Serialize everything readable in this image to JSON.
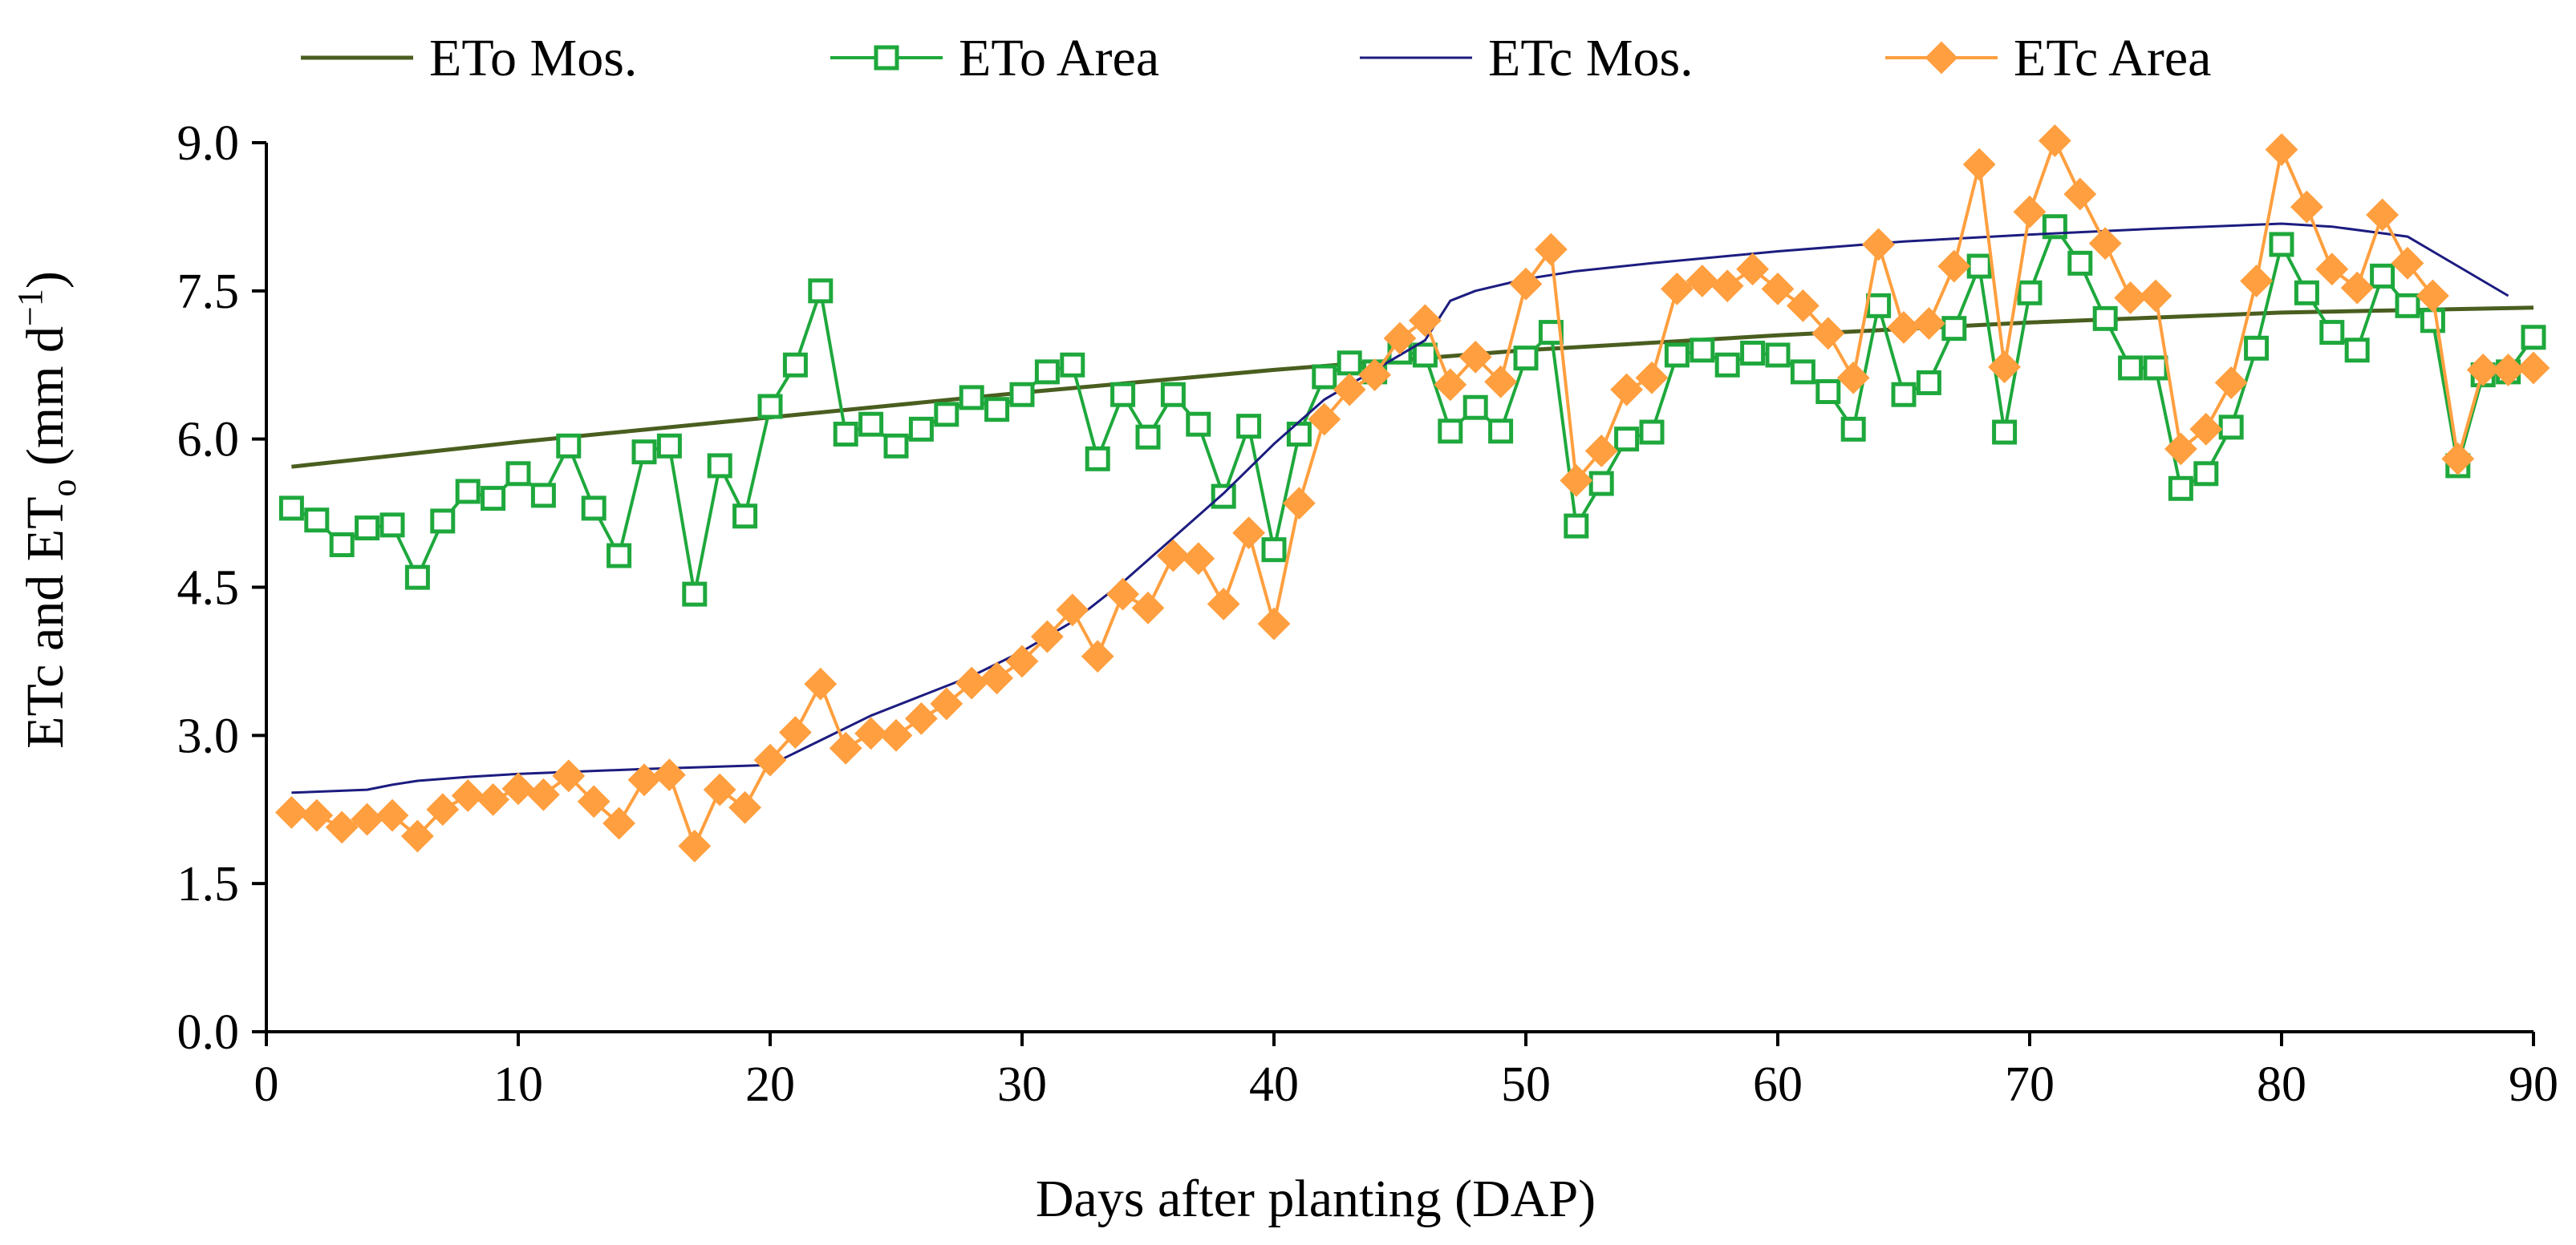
{
  "chart_data": {
    "type": "line",
    "title": "",
    "xlabel": "Days after planting (DAP)",
    "ylabel_main": "ETc and ET",
    "ylabel_sub": "o",
    "ylabel_unit_open": " (mm d",
    "ylabel_unit_exp": "−1",
    "ylabel_unit_close": ")",
    "xlim": [
      0,
      90
    ],
    "ylim": [
      0,
      9
    ],
    "xticks": [
      0,
      10,
      20,
      30,
      40,
      50,
      60,
      70,
      80,
      90
    ],
    "xtick_labels": [
      "0",
      "10",
      "20",
      "30",
      "40",
      "50",
      "60",
      "70",
      "80",
      "90"
    ],
    "yticks": [
      0,
      1.5,
      3,
      4.5,
      6,
      7.5,
      9
    ],
    "ytick_labels": [
      "0.0",
      "1.5",
      "3.0",
      "4.5",
      "6.0",
      "7.5",
      "9.0"
    ],
    "grid": false,
    "legend_position": "top",
    "series": [
      {
        "name": "ETo Mos.",
        "color": "#4a5e1f",
        "marker": "none",
        "x": [
          1,
          10,
          20,
          30,
          40,
          50,
          60,
          70,
          80,
          90
        ],
        "y": [
          5.72,
          5.97,
          6.22,
          6.47,
          6.7,
          6.9,
          7.05,
          7.18,
          7.28,
          7.33
        ]
      },
      {
        "name": "ETo Area",
        "color": "#1ea83c",
        "marker": "square",
        "x": [
          1,
          2,
          3,
          4,
          5,
          6,
          7,
          8,
          9,
          10,
          11,
          12,
          13,
          14,
          15,
          16,
          17,
          18,
          19,
          20,
          21,
          22,
          23,
          24,
          25,
          26,
          27,
          28,
          29,
          30,
          31,
          32,
          33,
          34,
          35,
          36,
          37,
          38,
          39,
          40,
          41,
          42,
          43,
          44,
          45,
          46,
          47,
          48,
          49,
          50,
          51,
          52,
          53,
          54,
          55,
          56,
          57,
          58,
          59,
          60,
          61,
          62,
          63,
          64,
          65,
          66,
          67,
          68,
          69,
          70,
          71,
          72,
          73,
          74,
          75,
          76,
          77,
          78,
          79,
          80,
          81,
          82,
          83,
          84,
          85,
          86,
          87,
          88,
          89,
          90
        ],
        "y": [
          5.3,
          5.18,
          4.93,
          5.1,
          5.13,
          4.6,
          5.17,
          5.47,
          5.4,
          5.65,
          5.43,
          5.93,
          5.3,
          4.82,
          5.87,
          5.93,
          4.43,
          5.73,
          5.22,
          6.33,
          6.75,
          7.5,
          6.05,
          6.15,
          5.93,
          6.1,
          6.25,
          6.42,
          6.3,
          6.45,
          6.68,
          6.75,
          5.8,
          6.45,
          6.02,
          6.45,
          6.15,
          5.42,
          6.13,
          4.88,
          6.05,
          6.63,
          6.77,
          6.68,
          6.88,
          6.85,
          6.08,
          6.32,
          6.08,
          6.82,
          7.08,
          5.12,
          5.55,
          6.0,
          6.07,
          6.85,
          6.9,
          6.75,
          6.87,
          6.85,
          6.68,
          6.48,
          6.1,
          7.35,
          6.45,
          6.57,
          7.12,
          7.75,
          6.07,
          7.48,
          8.15,
          7.78,
          7.22,
          6.72,
          6.72,
          5.5,
          5.65,
          6.12,
          6.92,
          7.97,
          7.48,
          7.08,
          6.9,
          7.65,
          7.35,
          7.2,
          5.73,
          6.65,
          6.68,
          7.03
        ]
      },
      {
        "name": "ETc Mos.",
        "color": "#1c1c80",
        "marker": "none",
        "x": [
          1,
          4,
          5,
          6,
          8,
          10,
          15,
          20,
          22,
          24,
          26,
          28,
          30,
          32,
          34,
          36,
          38,
          40,
          42,
          44,
          45,
          46,
          47,
          48,
          50,
          52,
          55,
          60,
          65,
          70,
          75,
          79,
          80,
          82,
          85,
          87,
          89
        ],
        "y": [
          2.42,
          2.45,
          2.5,
          2.54,
          2.58,
          2.61,
          2.66,
          2.7,
          2.95,
          3.2,
          3.4,
          3.6,
          3.85,
          4.15,
          4.55,
          5.0,
          5.45,
          5.95,
          6.4,
          6.7,
          6.85,
          7.0,
          7.4,
          7.5,
          7.62,
          7.7,
          7.78,
          7.9,
          8.0,
          8.07,
          8.13,
          8.17,
          8.18,
          8.15,
          8.05,
          7.75,
          7.45
        ]
      },
      {
        "name": "ETc Area",
        "color": "#ff9f3f",
        "marker": "diamond",
        "x": [
          1,
          2,
          3,
          4,
          5,
          6,
          7,
          8,
          9,
          10,
          11,
          12,
          13,
          14,
          15,
          16,
          17,
          18,
          19,
          20,
          21,
          22,
          23,
          24,
          25,
          26,
          27,
          28,
          29,
          30,
          31,
          32,
          33,
          34,
          35,
          36,
          37,
          38,
          39,
          40,
          41,
          42,
          43,
          44,
          45,
          46,
          47,
          48,
          49,
          50,
          51,
          52,
          53,
          54,
          55,
          56,
          57,
          58,
          59,
          60,
          61,
          62,
          63,
          64,
          65,
          66,
          67,
          68,
          69,
          70,
          71,
          72,
          73,
          74,
          75,
          76,
          77,
          78,
          79,
          80,
          81,
          82,
          83,
          84,
          85,
          86,
          87,
          88,
          89,
          90
        ],
        "y": [
          2.22,
          2.19,
          2.07,
          2.15,
          2.19,
          1.98,
          2.25,
          2.39,
          2.35,
          2.46,
          2.4,
          2.59,
          2.33,
          2.11,
          2.55,
          2.6,
          1.88,
          2.45,
          2.27,
          2.75,
          3.03,
          3.52,
          2.87,
          3.02,
          3.0,
          3.17,
          3.32,
          3.53,
          3.58,
          3.75,
          4.0,
          4.27,
          3.8,
          4.43,
          4.29,
          4.82,
          4.79,
          4.33,
          5.05,
          4.13,
          5.35,
          6.2,
          6.5,
          6.65,
          7.02,
          7.2,
          6.55,
          6.83,
          6.58,
          7.57,
          7.92,
          5.58,
          5.88,
          6.5,
          6.62,
          7.52,
          7.6,
          7.55,
          7.72,
          7.52,
          7.35,
          7.07,
          6.62,
          7.97,
          7.13,
          7.17,
          7.75,
          8.78,
          6.73,
          8.3,
          9.02,
          8.48,
          7.98,
          7.43,
          7.45,
          5.9,
          6.1,
          6.57,
          7.6,
          8.93,
          8.35,
          7.72,
          7.53,
          8.27,
          7.78,
          7.45,
          5.8,
          6.7,
          6.7,
          6.72
        ]
      }
    ]
  }
}
